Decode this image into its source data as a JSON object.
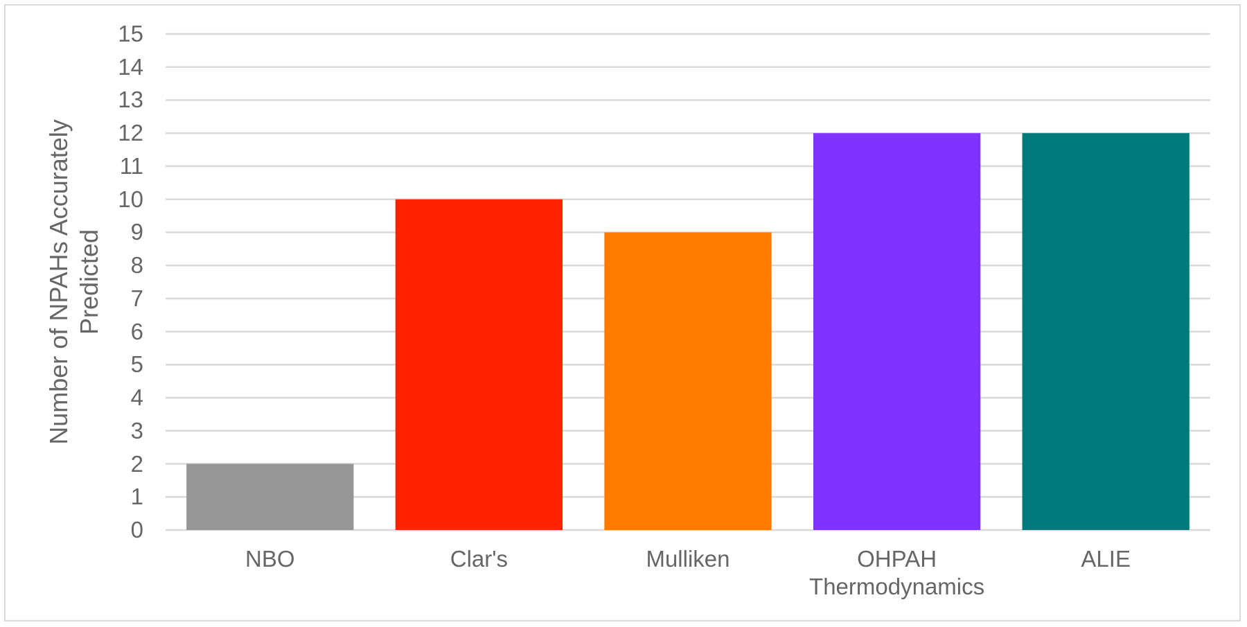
{
  "chart_data": {
    "type": "bar",
    "y_label": "Number of NPAHs Accurately Predicted",
    "categories": [
      "NBO",
      "Clar's",
      "Mulliken",
      "OHPAH Thermodynamics",
      "ALIE"
    ],
    "values": [
      2,
      10,
      9,
      12,
      12
    ],
    "colors": [
      "#969696",
      "#ff2200",
      "#ff7a00",
      "#8033ff",
      "#00797a"
    ],
    "ylim": [
      0,
      15
    ],
    "yticks": [
      0,
      1,
      2,
      3,
      4,
      5,
      6,
      7,
      8,
      9,
      10,
      11,
      12,
      13,
      14,
      15
    ],
    "grid": true
  }
}
